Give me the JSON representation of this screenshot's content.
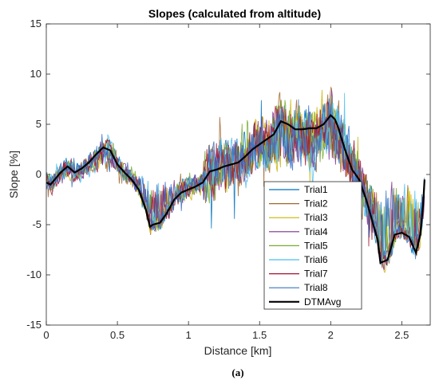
{
  "chart_data": {
    "type": "line",
    "title": "Slopes (calculated from altitude)",
    "xlabel": "Distance [km]",
    "ylabel": "Slope [%]",
    "xlim": [
      0,
      2.7
    ],
    "ylim": [
      -15,
      15
    ],
    "xticks": [
      0,
      0.5,
      1,
      1.5,
      2,
      2.5
    ],
    "xtick_labels": [
      "0",
      "0.5",
      "1",
      "1.5",
      "2",
      "2.5"
    ],
    "yticks": [
      -15,
      -10,
      -5,
      0,
      5,
      10,
      15
    ],
    "ytick_labels": [
      "-15",
      "-10",
      "-5",
      "0",
      "5",
      "10",
      "15"
    ],
    "grid": false,
    "legend_position": "lower-right-inside",
    "caption": "(a)",
    "avg_series": {
      "name": "DTMAvg",
      "color": "#000000",
      "x": [
        0,
        0.03,
        0.06,
        0.1,
        0.15,
        0.2,
        0.25,
        0.3,
        0.35,
        0.4,
        0.45,
        0.5,
        0.55,
        0.6,
        0.65,
        0.7,
        0.73,
        0.75,
        0.8,
        0.85,
        0.9,
        0.95,
        1.0,
        1.05,
        1.1,
        1.15,
        1.2,
        1.25,
        1.3,
        1.35,
        1.4,
        1.45,
        1.5,
        1.55,
        1.6,
        1.65,
        1.7,
        1.75,
        1.8,
        1.85,
        1.9,
        1.95,
        2.0,
        2.03,
        2.05,
        2.1,
        2.15,
        2.2,
        2.25,
        2.3,
        2.33,
        2.35,
        2.4,
        2.45,
        2.5,
        2.55,
        2.6,
        2.63,
        2.65,
        2.66
      ],
      "y": [
        -0.8,
        -1.0,
        -0.5,
        0.2,
        0.8,
        0.2,
        0.6,
        1.2,
        2.0,
        2.7,
        2.4,
        1.0,
        0.2,
        -0.5,
        -1.5,
        -3.5,
        -5.2,
        -5.0,
        -4.8,
        -3.8,
        -2.5,
        -1.8,
        -1.5,
        -1.2,
        -0.8,
        0.3,
        0.5,
        0.8,
        1.0,
        1.2,
        1.8,
        2.5,
        3.0,
        3.5,
        4.0,
        5.3,
        5.0,
        4.5,
        4.5,
        4.6,
        4.6,
        5.0,
        5.9,
        5.5,
        4.8,
        2.5,
        0.5,
        -0.5,
        -2.5,
        -5.0,
        -6.5,
        -8.8,
        -8.5,
        -6.0,
        -5.8,
        -6.2,
        -7.8,
        -6.0,
        -3.0,
        -0.5
      ]
    },
    "trial_series": [
      {
        "name": "Trial1",
        "color": "#0072BD"
      },
      {
        "name": "Trial2",
        "color": "#A2652C"
      },
      {
        "name": "Trial3",
        "color": "#C8B400"
      },
      {
        "name": "Trial4",
        "color": "#7E2F8E"
      },
      {
        "name": "Trial5",
        "color": "#77AC30"
      },
      {
        "name": "Trial6",
        "color": "#4DBEEE"
      },
      {
        "name": "Trial7",
        "color": "#A2142F"
      },
      {
        "name": "Trial8",
        "color": "#3A72C4"
      }
    ]
  }
}
